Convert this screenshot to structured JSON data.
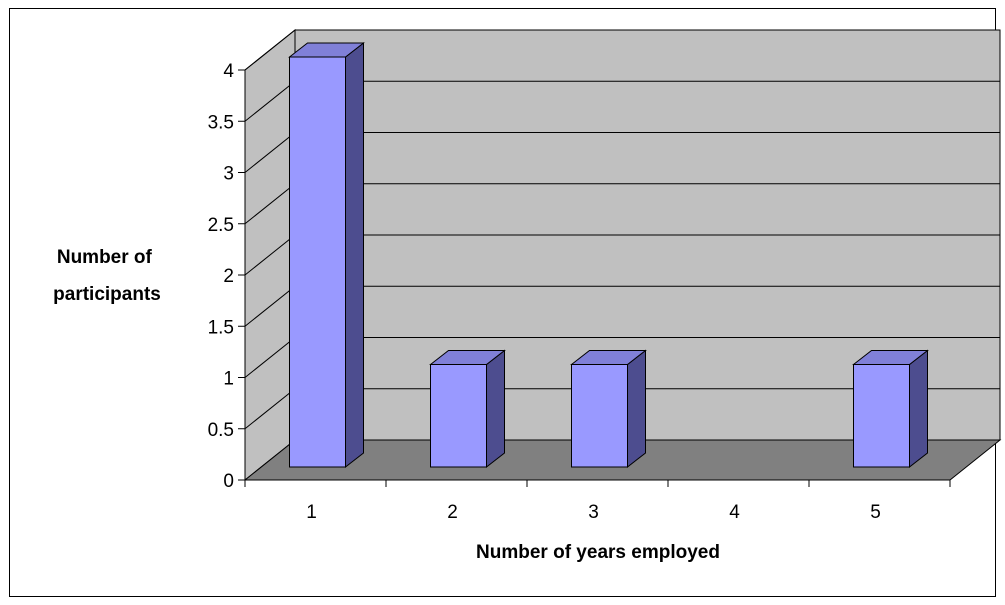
{
  "chart_data": {
    "type": "bar",
    "style": "3d-column",
    "categories": [
      "1",
      "2",
      "3",
      "4",
      "5"
    ],
    "values": [
      4,
      1,
      1,
      0,
      1
    ],
    "title": "",
    "xlabel": "Number of years employed",
    "ylabel_lines": [
      "Number of",
      "participants"
    ],
    "ylim": [
      0,
      4
    ],
    "yticks": [
      "0",
      "0.5",
      "1",
      "1.5",
      "2",
      "2.5",
      "3",
      "3.5",
      "4"
    ],
    "grid": true,
    "legend": "none",
    "colors": {
      "bar_front": "#9999ff",
      "bar_side": "#4d4d8f",
      "bar_top": "#8080d8",
      "back_wall": "#c0c0c0",
      "side_wall": "#c0c0c0",
      "floor": "#808080",
      "gridline": "#000000",
      "frame": "#000000"
    }
  }
}
